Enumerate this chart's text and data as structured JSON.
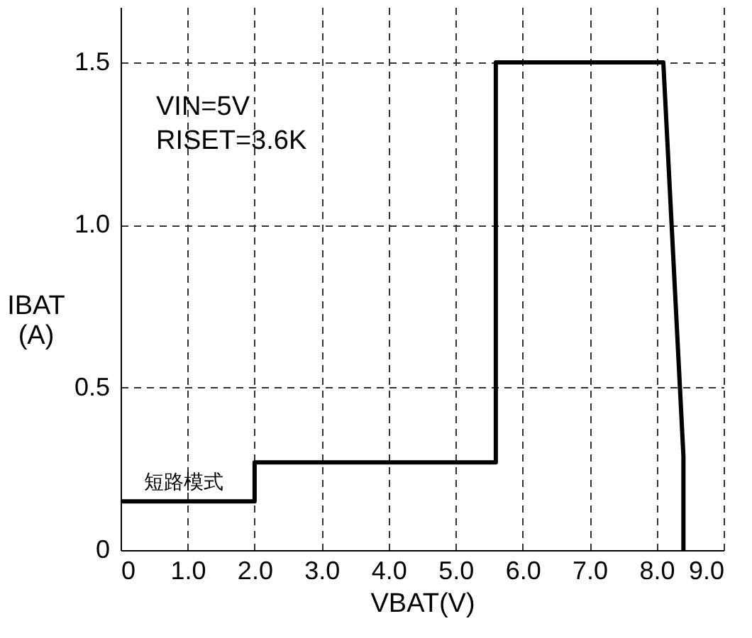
{
  "chart_data": {
    "type": "line",
    "xlabel": "VBAT(V)",
    "ylabel": "IBAT\n(A)",
    "x": [
      0,
      2.0,
      2.0,
      5.6,
      5.6,
      8.1,
      8.4,
      8.4
    ],
    "series": [
      {
        "color": "#000000",
        "values": [
          0.15,
          0.15,
          0.27,
          0.27,
          1.5,
          1.5,
          0.29,
          0
        ]
      }
    ],
    "xlim": [
      0,
      9
    ],
    "ylim": [
      0,
      1.67
    ],
    "xticks": [
      0,
      {
        "value": 1,
        "label": "1.0"
      },
      {
        "value": 2,
        "label": "2.0"
      },
      {
        "value": 3,
        "label": "3.0"
      },
      {
        "value": 4,
        "label": "4.0"
      },
      {
        "value": 5,
        "label": "5.0"
      },
      {
        "value": 6,
        "label": "6.0"
      },
      {
        "value": 7,
        "label": "7.0"
      },
      {
        "value": 8,
        "label": "8.0"
      },
      {
        "value": 9,
        "label": "9.0"
      }
    ],
    "yticks": [
      0,
      0.5,
      {
        "value": 1,
        "label": "1.0"
      },
      1.5
    ],
    "grid": true,
    "line_style": "solid",
    "marker": "none",
    "annotations": [
      "VIN=5V",
      "RISET=3.6K",
      {
        "text": "短路模式",
        "x": 0.35,
        "y": 0.15
      }
    ]
  }
}
